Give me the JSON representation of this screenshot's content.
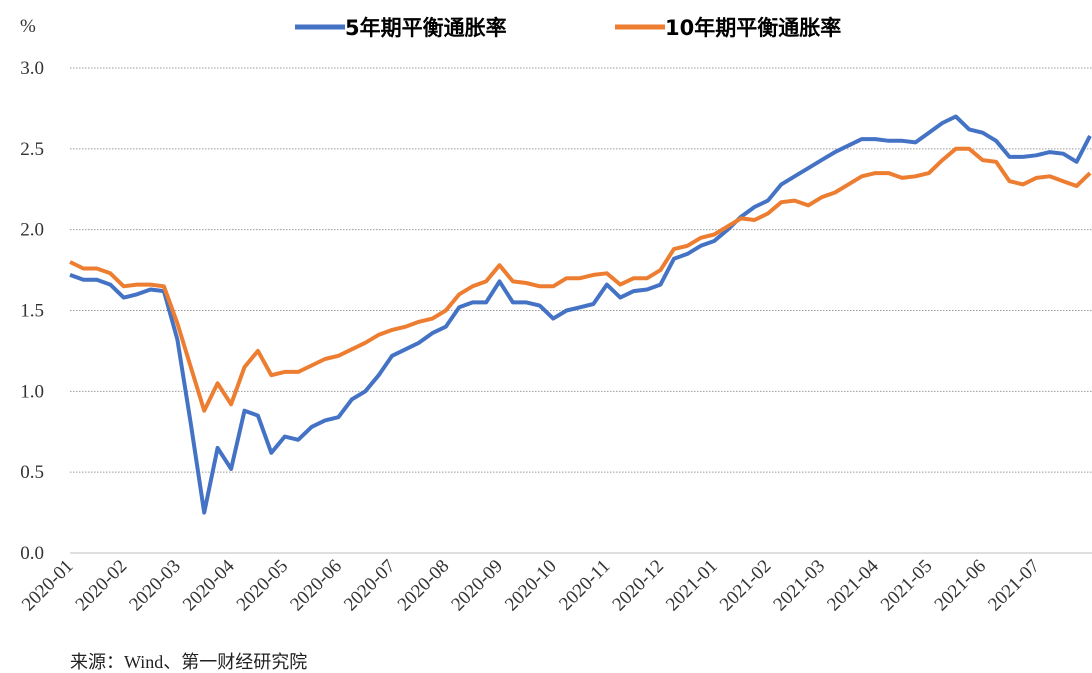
{
  "chart_data": {
    "type": "line",
    "y_label": "%",
    "source": "来源：Wind、第一财经研究院",
    "categories": [
      "2020-01",
      null,
      null,
      null,
      "2020-02",
      null,
      null,
      null,
      "2020-03",
      null,
      null,
      null,
      "2020-04",
      null,
      null,
      null,
      "2020-05",
      null,
      null,
      null,
      "2020-06",
      null,
      null,
      null,
      "2020-07",
      null,
      null,
      null,
      "2020-08",
      null,
      null,
      null,
      "2020-09",
      null,
      null,
      null,
      "2020-10",
      null,
      null,
      null,
      "2020-11",
      null,
      null,
      null,
      "2020-12",
      null,
      null,
      null,
      "2021-01",
      null,
      null,
      null,
      "2021-02",
      null,
      null,
      null,
      "2021-03",
      null,
      null,
      null,
      "2021-04",
      null,
      null,
      null,
      "2021-05",
      null,
      null,
      null,
      "2021-06",
      null,
      null,
      null,
      "2021-07",
      null,
      null,
      null,
      null
    ],
    "series": [
      {
        "name": "5年期平衡通胀率",
        "color": "#4472c4",
        "values": [
          1.72,
          1.69,
          1.69,
          1.66,
          1.58,
          1.6,
          1.63,
          1.62,
          1.32,
          0.8,
          0.25,
          0.65,
          0.52,
          0.88,
          0.85,
          0.62,
          0.72,
          0.7,
          0.78,
          0.82,
          0.84,
          0.95,
          1.0,
          1.1,
          1.22,
          1.26,
          1.3,
          1.36,
          1.4,
          1.52,
          1.55,
          1.55,
          1.68,
          1.55,
          1.55,
          1.53,
          1.45,
          1.5,
          1.52,
          1.54,
          1.66,
          1.58,
          1.62,
          1.63,
          1.66,
          1.82,
          1.85,
          1.9,
          1.93,
          2.0,
          2.08,
          2.14,
          2.18,
          2.28,
          2.33,
          2.38,
          2.43,
          2.48,
          2.52,
          2.56,
          2.56,
          2.55,
          2.55,
          2.54,
          2.6,
          2.66,
          2.7,
          2.62,
          2.6,
          2.55,
          2.45,
          2.45,
          2.46,
          2.48,
          2.47,
          2.42,
          2.58
        ]
      },
      {
        "name": "10年期平衡通胀率",
        "color": "#ed7d31",
        "values": [
          1.8,
          1.76,
          1.76,
          1.73,
          1.65,
          1.66,
          1.66,
          1.65,
          1.42,
          1.15,
          0.88,
          1.05,
          0.92,
          1.15,
          1.25,
          1.1,
          1.12,
          1.12,
          1.16,
          1.2,
          1.22,
          1.26,
          1.3,
          1.35,
          1.38,
          1.4,
          1.43,
          1.45,
          1.5,
          1.6,
          1.65,
          1.68,
          1.78,
          1.68,
          1.67,
          1.65,
          1.65,
          1.7,
          1.7,
          1.72,
          1.73,
          1.66,
          1.7,
          1.7,
          1.75,
          1.88,
          1.9,
          1.95,
          1.97,
          2.02,
          2.07,
          2.06,
          2.1,
          2.17,
          2.18,
          2.15,
          2.2,
          2.23,
          2.28,
          2.33,
          2.35,
          2.35,
          2.32,
          2.33,
          2.35,
          2.43,
          2.5,
          2.5,
          2.43,
          2.42,
          2.3,
          2.28,
          2.32,
          2.33,
          2.3,
          2.27,
          2.35
        ]
      }
    ],
    "ylim": [
      0,
      3
    ],
    "yticks": [
      {
        "value": 0,
        "label": "0.0"
      },
      0.5,
      {
        "value": 1,
        "label": "1.0"
      },
      1.5,
      {
        "value": 2,
        "label": "2.0"
      },
      2.5,
      {
        "value": 3,
        "label": "3.0"
      }
    ],
    "grid": true,
    "legend": "top"
  }
}
